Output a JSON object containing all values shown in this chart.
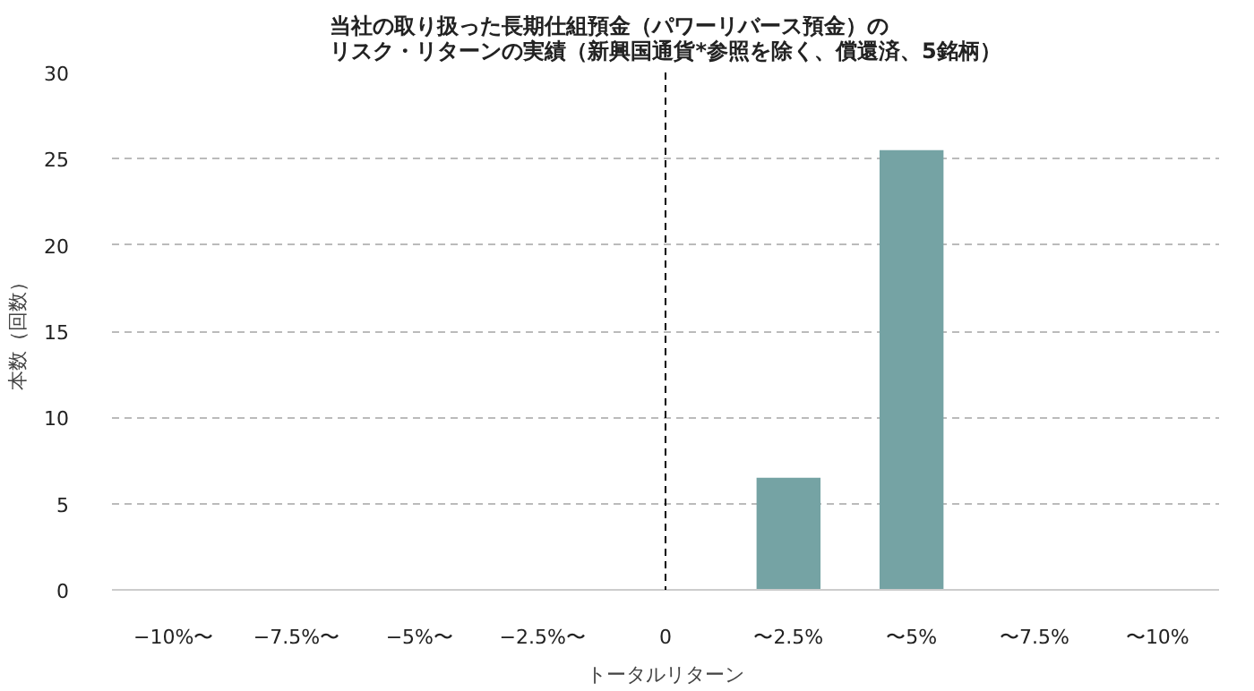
{
  "chart_data": {
    "type": "bar",
    "title": "当社の取り扱った長期仕組預金（パワーリバース預金）のリスク・リターンの実績（新興国通貨*参照を除く、償還済、5銘柄）",
    "xlabel": "トータルリターン",
    "ylabel": "本数（回数）",
    "categories": [
      "−10%〜",
      "−7.5%〜",
      "−5%〜",
      "−2.5%〜",
      "0",
      "〜2.5%",
      "〜5%",
      "〜7.5%",
      "〜10%"
    ],
    "values": [
      0,
      0,
      0,
      0,
      0,
      6.5,
      25.5,
      0,
      0
    ],
    "color": "#75a3a4",
    "ylim": [
      0,
      30
    ],
    "yticks": [
      0,
      5,
      10,
      15,
      20,
      25,
      30
    ],
    "grid": "y",
    "ref_lines": [
      {
        "axis": "x",
        "value": "0",
        "label": null,
        "color": "#000000",
        "line_style": "dashed"
      }
    ]
  }
}
